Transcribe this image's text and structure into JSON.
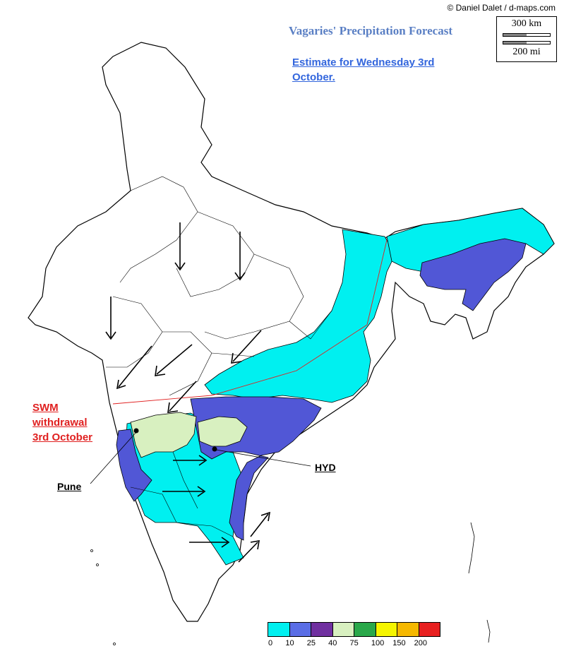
{
  "credit": "© Daniel Dalet / d-maps.com",
  "title": "Vagaries' Precipitation Forecast",
  "estimate": "Estimate for Wednesday 3rd October.",
  "scale": {
    "km_label": "300 km",
    "mi_label": "200 mi"
  },
  "annotations": {
    "swm_line1": "SWM",
    "swm_line2": "withdrawal",
    "swm_line3": "3rd October",
    "pune": "Pune",
    "hyd": "HYD"
  },
  "legend": {
    "units": [
      {
        "label": "0",
        "color": "#00f0f0"
      },
      {
        "label": "10",
        "color": "#5a6ee6"
      },
      {
        "label": "25",
        "color": "#7030a0"
      },
      {
        "label": "40",
        "color": "#d8f0c0"
      },
      {
        "label": "75",
        "color": "#2aa84a"
      },
      {
        "label": "100",
        "color": "#f5f500"
      },
      {
        "label": "150",
        "color": "#f5b800"
      },
      {
        "label": "200",
        "color": "#e82020"
      }
    ]
  },
  "colors": {
    "cyan": "#00f0f0",
    "blue": "#5157d6",
    "lightgreen": "#d8f0c0",
    "outline": "#000000",
    "boundary": "#e6e6e6"
  }
}
